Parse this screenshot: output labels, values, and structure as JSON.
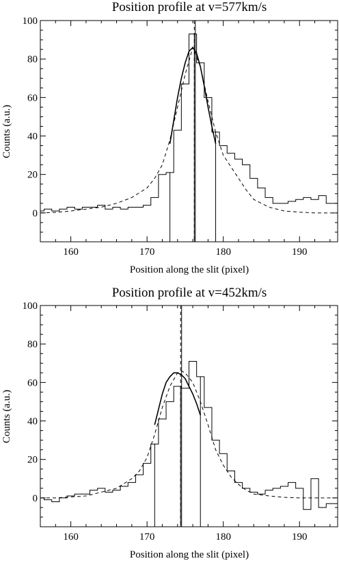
{
  "chart_data": [
    {
      "type": "line",
      "title": "Position profile at v=577km/s",
      "xlabel": "Position along the slit (pixel)",
      "ylabel": "Counts (a.u.)",
      "xlim": [
        156,
        195
      ],
      "ylim": [
        -15,
        100
      ],
      "xticks": [
        160,
        170,
        180,
        190
      ],
      "yticks": [
        0,
        20,
        40,
        60,
        80,
        100
      ],
      "grid": false,
      "series": [
        {
          "style": "histogram-step",
          "x": [
            156,
            157,
            158,
            159,
            160,
            161,
            162,
            163,
            164,
            165,
            166,
            167,
            168,
            169,
            170,
            171,
            172,
            173,
            174,
            175,
            176,
            177,
            178,
            179,
            180,
            181,
            182,
            183,
            184,
            185,
            186,
            187,
            188,
            189,
            190,
            191,
            192,
            193,
            194,
            195
          ],
          "y": [
            1,
            2,
            1,
            2,
            3,
            2,
            3,
            3,
            4,
            2,
            3,
            2,
            3,
            3,
            4,
            8,
            20,
            21,
            43,
            67,
            93,
            78,
            60,
            42,
            35,
            31,
            28,
            25,
            18,
            13,
            8,
            5,
            5,
            6,
            7,
            8,
            7,
            9,
            5,
            5
          ]
        },
        {
          "style": "dashed",
          "x": [
            156,
            158,
            160,
            162,
            164,
            166,
            168,
            170,
            171,
            172,
            173,
            174,
            175,
            176,
            177,
            178,
            179,
            180,
            181,
            182,
            183,
            184,
            186,
            188,
            190,
            192,
            195
          ],
          "y": [
            0,
            0.3,
            1,
            2,
            3,
            5,
            8,
            13,
            18,
            25,
            38,
            55,
            72,
            86,
            76,
            58,
            42,
            30,
            24,
            18,
            12,
            7,
            3,
            1,
            0.4,
            0,
            0
          ]
        },
        {
          "style": "solid-fit",
          "x": [
            173,
            173.5,
            174,
            174.5,
            175,
            175.5,
            176,
            176.5,
            177,
            177.5,
            178,
            178.5,
            179
          ],
          "y": [
            36,
            48,
            60,
            70,
            78,
            84,
            86,
            83,
            76,
            66,
            55,
            45,
            36
          ]
        }
      ],
      "vlines_solid": [
        173,
        176.2,
        179
      ],
      "vline_dashed": 176.2
    },
    {
      "type": "line",
      "title": "Position profile at v=452km/s",
      "xlabel": "Position along the slit (pixel)",
      "ylabel": "Counts (a.u.)",
      "xlim": [
        156,
        195
      ],
      "ylim": [
        -15,
        100
      ],
      "xticks": [
        160,
        170,
        180,
        190
      ],
      "yticks": [
        0,
        20,
        40,
        60,
        80,
        100
      ],
      "grid": false,
      "series": [
        {
          "style": "histogram-step",
          "x": [
            156,
            157,
            158,
            159,
            160,
            161,
            162,
            163,
            164,
            165,
            166,
            167,
            168,
            169,
            170,
            171,
            172,
            173,
            174,
            175,
            176,
            177,
            178,
            179,
            180,
            181,
            182,
            183,
            184,
            185,
            186,
            187,
            188,
            189,
            190,
            191,
            192,
            193,
            194,
            195
          ],
          "y": [
            0,
            -1,
            -2,
            0,
            1,
            2,
            2,
            4,
            5,
            3,
            4,
            6,
            8,
            12,
            18,
            28,
            41,
            50,
            58,
            57,
            71,
            63,
            47,
            30,
            23,
            14,
            8,
            5,
            3,
            2,
            4,
            5,
            6,
            8,
            5,
            -6,
            10,
            -5,
            -3,
            -3
          ]
        },
        {
          "style": "dashed",
          "x": [
            156,
            158,
            160,
            162,
            164,
            166,
            168,
            169,
            170,
            171,
            172,
            173,
            174,
            174.5,
            175,
            176,
            177,
            178,
            179,
            180,
            181,
            182,
            183,
            184,
            186,
            188,
            190,
            192,
            195
          ],
          "y": [
            0,
            0,
            0.5,
            1,
            3,
            5,
            10,
            14,
            21,
            33,
            47,
            58,
            65,
            66,
            65,
            60,
            50,
            38,
            25,
            17,
            11,
            7,
            4,
            2,
            1,
            0.3,
            0,
            0,
            0
          ]
        },
        {
          "style": "solid-fit",
          "x": [
            171,
            171.5,
            172,
            172.5,
            173,
            173.5,
            174,
            174.5,
            175,
            175.5,
            176,
            176.5,
            177
          ],
          "y": [
            38,
            46,
            54,
            60,
            63,
            65,
            65,
            64,
            62,
            58,
            54,
            49,
            43
          ]
        }
      ],
      "vlines_solid": [
        171,
        174.4,
        177
      ],
      "vline_dashed": 174.4
    }
  ]
}
